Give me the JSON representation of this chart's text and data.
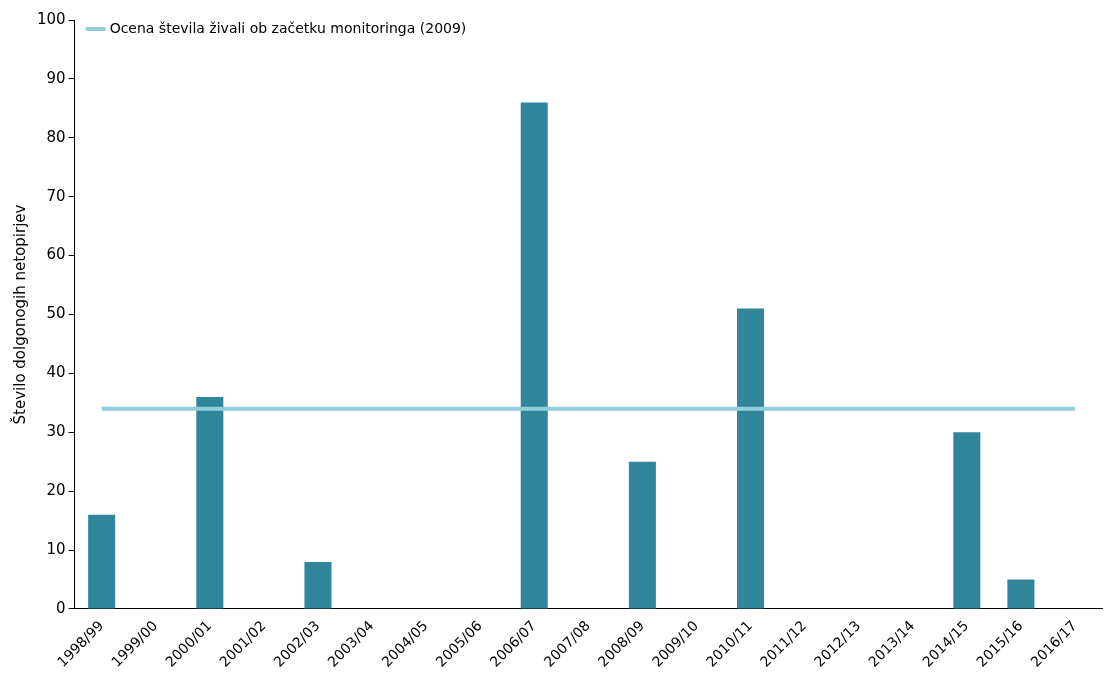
{
  "chart_data": {
    "type": "bar",
    "ylabel": "Število dolgonogih netopirjev",
    "categories": [
      "1998/99",
      "1999/00",
      "2000/01",
      "2001/02",
      "2002/03",
      "2003/04",
      "2004/05",
      "2005/06",
      "2006/07",
      "2007/08",
      "2008/09",
      "2009/10",
      "2010/11",
      "2011/12",
      "2012/13",
      "2013/14",
      "2014/15",
      "2015/16",
      "2016/17"
    ],
    "series": [
      {
        "color": "#31869b",
        "values": [
          16,
          null,
          36,
          null,
          8,
          null,
          null,
          null,
          86,
          null,
          25,
          null,
          51,
          null,
          null,
          null,
          30,
          5,
          null
        ]
      },
      {
        "type": "line",
        "name": "Ocena števila živali ob začetku monitoringa (2009)",
        "color": "#92cddc",
        "values": [
          34,
          34,
          34,
          34,
          34,
          34,
          34,
          34,
          34,
          34,
          34,
          34,
          34,
          34,
          34,
          34,
          34,
          34,
          34
        ]
      }
    ],
    "ylim": [
      0,
      100
    ],
    "yticks": [
      0,
      10,
      20,
      30,
      40,
      50,
      60,
      70,
      80,
      90,
      100
    ],
    "grid": false,
    "legend": "top left",
    "marker": "none"
  }
}
